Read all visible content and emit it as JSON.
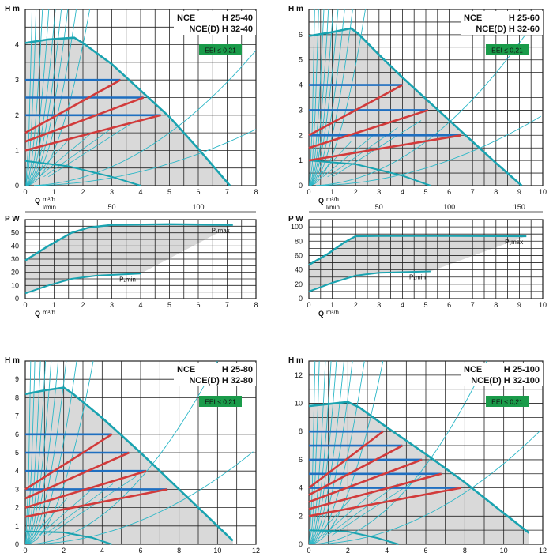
{
  "colors": {
    "curve": "#1aa3b0",
    "thin": "#2bb7c7",
    "fill": "#d9d9d9",
    "blue": "#1f6fc0",
    "red": "#d23b3b",
    "badge": "#1a9b4a",
    "grid": "#222222"
  },
  "chart_data": [
    {
      "id": "h1",
      "type": "line",
      "title_left": "NCE",
      "title_right": "H 25-40",
      "title2": "NCE(D) H 32-40",
      "badge": "EEI ≤ 0,21",
      "ylabel": "H m",
      "xlabel": "Q",
      "xunit": "m³/h",
      "xunit2": "l/min",
      "xlim": [
        0,
        8
      ],
      "ylim": [
        0,
        5
      ],
      "xticks": [
        "0",
        "1",
        "2",
        "3",
        "4",
        "5",
        "6",
        "7",
        "8"
      ],
      "yticks": [
        "0",
        "1",
        "2",
        "3",
        "4"
      ],
      "x2ticks": [
        {
          "v": 50,
          "label": "50"
        },
        {
          "v": 100,
          "label": "100"
        }
      ],
      "max_curve": [
        [
          0,
          4.05
        ],
        [
          0.8,
          4.15
        ],
        [
          1.7,
          4.2
        ],
        [
          2.0,
          4.05
        ],
        [
          3.0,
          3.45
        ],
        [
          4.0,
          2.7
        ],
        [
          5.0,
          1.95
        ],
        [
          6.0,
          1.05
        ],
        [
          7.1,
          0.0
        ]
      ],
      "min_curve": [
        [
          0,
          0.7
        ],
        [
          1.5,
          0.55
        ],
        [
          3.0,
          0.25
        ],
        [
          4.0,
          0.0
        ]
      ],
      "blue_levels": [
        {
          "y": 3.0,
          "x_end": 3.3
        },
        {
          "y": 2.5,
          "x_end": 4.1
        },
        {
          "y": 2.0,
          "x_end": 4.7
        }
      ],
      "red_lines": [
        [
          [
            0,
            1.5
          ],
          [
            3.3,
            3.0
          ]
        ],
        [
          [
            0,
            1.25
          ],
          [
            4.1,
            2.5
          ]
        ],
        [
          [
            0,
            1.0
          ],
          [
            4.7,
            2.0
          ]
        ]
      ],
      "system_curves": [
        1.0,
        1.6,
        2.3,
        3.2,
        4.6,
        7.5,
        14,
        35,
        90
      ],
      "low_curves": [
        0.06,
        0.025
      ]
    },
    {
      "id": "h2",
      "type": "line",
      "title_left": "NCE",
      "title_right": "H 25-60",
      "title2": "NCE(D) H 32-60",
      "badge": "EEI ≤ 0,21",
      "ylabel": "H m",
      "xlabel": "Q",
      "xunit": "m³/h",
      "xunit2": "l/min",
      "xlim": [
        0,
        10
      ],
      "ylim": [
        0,
        7
      ],
      "xticks": [
        "0",
        "1",
        "2",
        "3",
        "4",
        "5",
        "6",
        "7",
        "8",
        "9",
        "10"
      ],
      "yticks": [
        "0",
        "1",
        "2",
        "3",
        "4",
        "5",
        "6"
      ],
      "x2ticks": [
        {
          "v": 50,
          "label": "50"
        },
        {
          "v": 100,
          "label": "100"
        },
        {
          "v": 150,
          "label": "150"
        }
      ],
      "max_curve": [
        [
          0,
          5.95
        ],
        [
          1.0,
          6.1
        ],
        [
          1.8,
          6.25
        ],
        [
          2.1,
          6.05
        ],
        [
          3.0,
          5.2
        ],
        [
          4.0,
          4.3
        ],
        [
          5.0,
          3.45
        ],
        [
          6.0,
          2.6
        ],
        [
          7.0,
          1.75
        ],
        [
          8.0,
          0.9
        ],
        [
          9.1,
          0.0
        ]
      ],
      "min_curve": [
        [
          0,
          1.0
        ],
        [
          2.0,
          0.85
        ],
        [
          4.0,
          0.4
        ],
        [
          5.2,
          0.0
        ]
      ],
      "blue_levels": [
        {
          "y": 4.0,
          "x_end": 4.0
        },
        {
          "y": 3.0,
          "x_end": 5.1
        },
        {
          "y": 2.0,
          "x_end": 6.5
        }
      ],
      "red_lines": [
        [
          [
            0,
            2.0
          ],
          [
            4.0,
            4.0
          ]
        ],
        [
          [
            0,
            1.5
          ],
          [
            5.1,
            3.0
          ]
        ],
        [
          [
            0,
            1.0
          ],
          [
            6.5,
            2.0
          ]
        ]
      ],
      "system_curves": [
        1.2,
        2.0,
        3.0,
        4.5,
        6.5,
        10,
        17,
        40,
        110
      ],
      "low_curves": [
        0.05,
        0.02
      ]
    },
    {
      "id": "p1",
      "type": "line",
      "ylabel": "P W",
      "xlabel": "Q",
      "xunit": "m³/h",
      "xlim": [
        0,
        8
      ],
      "ylim": [
        0,
        60
      ],
      "xticks": [
        "0",
        "1",
        "2",
        "3",
        "4",
        "5",
        "6",
        "7",
        "8"
      ],
      "yticks": [
        "0",
        "10",
        "20",
        "30",
        "40",
        "50"
      ],
      "pmax_label": "P₁max",
      "pmin_label": "P₁min",
      "pmax_curve": [
        [
          0,
          29
        ],
        [
          0.8,
          40
        ],
        [
          1.6,
          50
        ],
        [
          2.2,
          54
        ],
        [
          3.0,
          56
        ],
        [
          5.0,
          56.5
        ],
        [
          7.2,
          56
        ]
      ],
      "pmin_curve": [
        [
          0,
          4
        ],
        [
          0.8,
          10
        ],
        [
          1.6,
          15
        ],
        [
          2.5,
          17.5
        ],
        [
          4.0,
          19
        ]
      ],
      "fill_poly": [
        [
          0,
          29
        ],
        [
          0.8,
          40
        ],
        [
          1.6,
          50
        ],
        [
          2.2,
          54
        ],
        [
          3.0,
          56
        ],
        [
          5.0,
          56.5
        ],
        [
          7.2,
          56
        ],
        [
          4.0,
          19
        ],
        [
          2.5,
          17.5
        ],
        [
          1.6,
          15
        ],
        [
          0.8,
          10
        ],
        [
          0,
          4
        ]
      ]
    },
    {
      "id": "p2",
      "type": "line",
      "ylabel": "P W",
      "xlabel": "Q",
      "xunit": "m³/h",
      "xlim": [
        0,
        10
      ],
      "ylim": [
        0,
        110
      ],
      "xticks": [
        "0",
        "1",
        "2",
        "3",
        "4",
        "5",
        "6",
        "7",
        "8",
        "9",
        "10"
      ],
      "yticks": [
        "0",
        "20",
        "40",
        "60",
        "80",
        "100"
      ],
      "pmax_label": "P₁max",
      "pmin_label": "P₁min",
      "pmax_curve": [
        [
          0,
          47
        ],
        [
          0.8,
          62
        ],
        [
          1.5,
          78
        ],
        [
          2.0,
          87
        ],
        [
          3.0,
          87.5
        ],
        [
          6.0,
          87.5
        ],
        [
          9.3,
          87
        ]
      ],
      "pmin_curve": [
        [
          0,
          10
        ],
        [
          1.0,
          22
        ],
        [
          2.0,
          32
        ],
        [
          3.0,
          36
        ],
        [
          5.2,
          38
        ]
      ],
      "fill_poly": [
        [
          0,
          47
        ],
        [
          0.8,
          62
        ],
        [
          1.5,
          78
        ],
        [
          2.0,
          87
        ],
        [
          3.0,
          87.5
        ],
        [
          6.0,
          87.5
        ],
        [
          9.3,
          87
        ],
        [
          5.2,
          38
        ],
        [
          3.0,
          36
        ],
        [
          2.0,
          32
        ],
        [
          1.0,
          22
        ],
        [
          0,
          10
        ]
      ]
    },
    {
      "id": "h3",
      "type": "line",
      "title_left": "NCE",
      "title_right": "H 25-80",
      "title2": "NCE(D) H 32-80",
      "badge": "EEI ≤ 0,21",
      "ylabel": "H m",
      "xlabel": "Q",
      "xunit": "m³/h",
      "xlim": [
        0,
        12
      ],
      "ylim": [
        0,
        10
      ],
      "xticks": [
        "0",
        "2",
        "4",
        "6",
        "8",
        "10",
        "12"
      ],
      "yticks": [
        "0",
        "1",
        "2",
        "3",
        "4",
        "5",
        "6",
        "7",
        "8",
        "9"
      ],
      "max_curve": [
        [
          0,
          8.2
        ],
        [
          1.0,
          8.4
        ],
        [
          2.0,
          8.55
        ],
        [
          2.5,
          8.2
        ],
        [
          4.0,
          6.9
        ],
        [
          6.0,
          5.0
        ],
        [
          8.0,
          3.0
        ],
        [
          10.0,
          1.0
        ],
        [
          10.8,
          0.2
        ]
      ],
      "min_curve": [
        [
          0,
          0.7
        ],
        [
          2.0,
          0.65
        ],
        [
          3.5,
          0.35
        ],
        [
          4.5,
          0.0
        ]
      ],
      "blue_levels": [
        {
          "y": 6.0,
          "x_end": 4.5
        },
        {
          "y": 5.0,
          "x_end": 5.4
        },
        {
          "y": 4.0,
          "x_end": 6.3
        },
        {
          "y": 3.0,
          "x_end": 7.4
        }
      ],
      "red_lines": [
        [
          [
            0,
            3.0
          ],
          [
            4.5,
            6.0
          ]
        ],
        [
          [
            0,
            2.5
          ],
          [
            5.4,
            5.0
          ]
        ],
        [
          [
            0,
            2.0
          ],
          [
            6.3,
            4.0
          ]
        ],
        [
          [
            0,
            1.5
          ],
          [
            7.4,
            3.0
          ]
        ]
      ],
      "system_curves": [
        0.8,
        1.4,
        2.2,
        3.4,
        5.5,
        9,
        16,
        40,
        120
      ],
      "low_curves": [
        0.05,
        0.018
      ]
    },
    {
      "id": "h4",
      "type": "line",
      "title_left": "NCE",
      "title_right": "H 25-100",
      "title2": "NCE(D) H 32-100",
      "badge": "EEI ≤ 0,21",
      "ylabel": "H m",
      "xlabel": "Q",
      "xunit": "m³/h",
      "xlim": [
        0,
        12
      ],
      "ylim": [
        0,
        13
      ],
      "xticks": [
        "0",
        "2",
        "4",
        "6",
        "8",
        "10",
        "12"
      ],
      "yticks": [
        "0",
        "2",
        "4",
        "6",
        "8",
        "10",
        "12"
      ],
      "max_curve": [
        [
          0,
          9.8
        ],
        [
          1.0,
          9.95
        ],
        [
          2.0,
          10.1
        ],
        [
          2.6,
          9.7
        ],
        [
          4.0,
          8.3
        ],
        [
          6.0,
          6.4
        ],
        [
          8.0,
          4.4
        ],
        [
          10.0,
          2.2
        ],
        [
          11.3,
          0.8
        ]
      ],
      "min_curve": [
        [
          0,
          1.0
        ],
        [
          2.0,
          0.9
        ],
        [
          3.5,
          0.45
        ],
        [
          4.6,
          0.0
        ]
      ],
      "blue_levels": [
        {
          "y": 8.0,
          "x_end": 3.8
        },
        {
          "y": 7.0,
          "x_end": 4.8
        },
        {
          "y": 6.0,
          "x_end": 5.8
        },
        {
          "y": 5.0,
          "x_end": 6.8
        },
        {
          "y": 4.0,
          "x_end": 7.8
        }
      ],
      "red_lines": [
        [
          [
            0,
            4.0
          ],
          [
            3.8,
            8.0
          ]
        ],
        [
          [
            0,
            3.5
          ],
          [
            4.8,
            7.0
          ]
        ],
        [
          [
            0,
            3.0
          ],
          [
            5.8,
            6.0
          ]
        ],
        [
          [
            0,
            2.5
          ],
          [
            6.8,
            5.0
          ]
        ],
        [
          [
            0,
            2.0
          ],
          [
            7.8,
            4.0
          ]
        ]
      ],
      "system_curves": [
        0.9,
        1.6,
        2.6,
        4.0,
        6.5,
        10,
        18,
        45,
        130
      ],
      "low_curves": [
        0.06,
        0.022
      ]
    }
  ]
}
